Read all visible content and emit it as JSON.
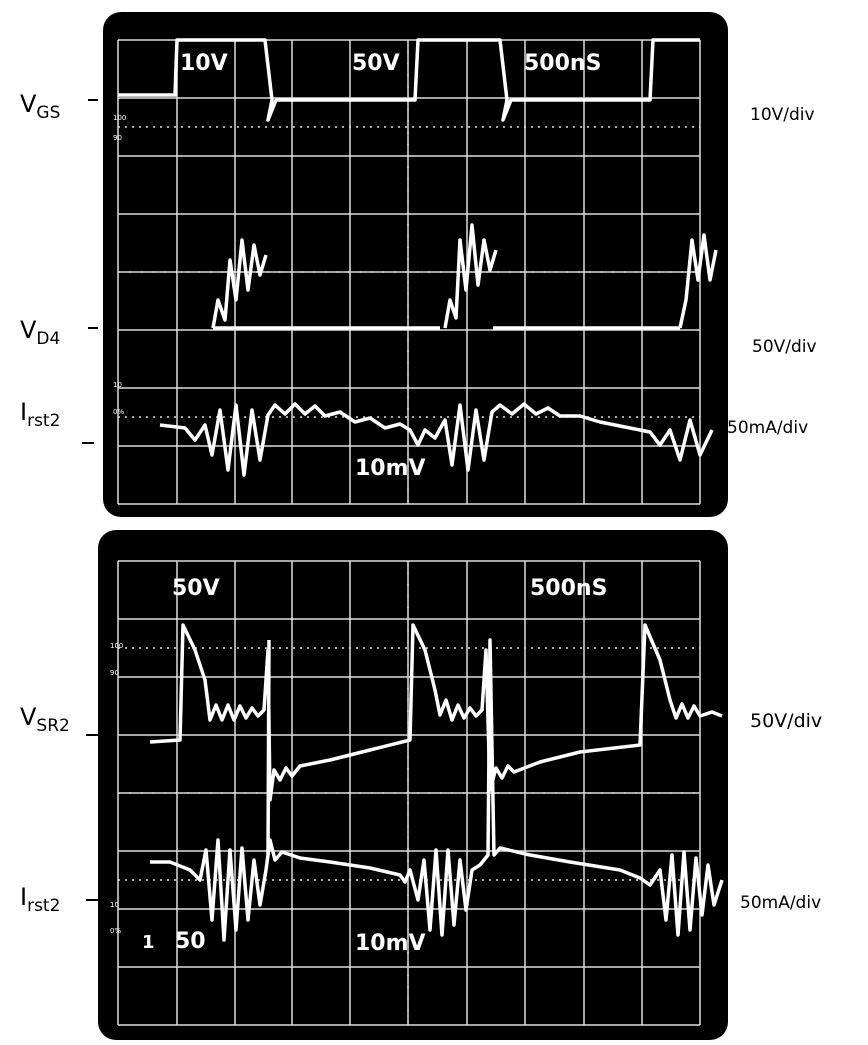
{
  "top_panel": {
    "screen_labels": {
      "ch1": "10V",
      "ch2": "50V",
      "timebase": "500nS",
      "ch3": "10mV"
    },
    "graticule_marks": [
      "100",
      "90",
      "10",
      "0%"
    ],
    "signals": [
      {
        "name": {
          "main": "V",
          "sub": "GS"
        },
        "scale": "10V/div"
      },
      {
        "name": {
          "main": "V",
          "sub": "D4"
        },
        "scale": "50V/div"
      },
      {
        "name": {
          "main": "I",
          "sub": "rst2"
        },
        "scale": "50mA/div"
      }
    ]
  },
  "bottom_panel": {
    "screen_labels": {
      "ch1": "50V",
      "timebase": "500nS",
      "channel": "1",
      "ch1_bottom": "50",
      "ch3": "10mV"
    },
    "graticule_marks": [
      "100",
      "90",
      "10",
      "0%"
    ],
    "signals": [
      {
        "name": {
          "main": "V",
          "sub": "SR2"
        },
        "scale": "50V/div"
      },
      {
        "name": {
          "main": "I",
          "sub": "rst2"
        },
        "scale": "50mA/div"
      }
    ]
  }
}
